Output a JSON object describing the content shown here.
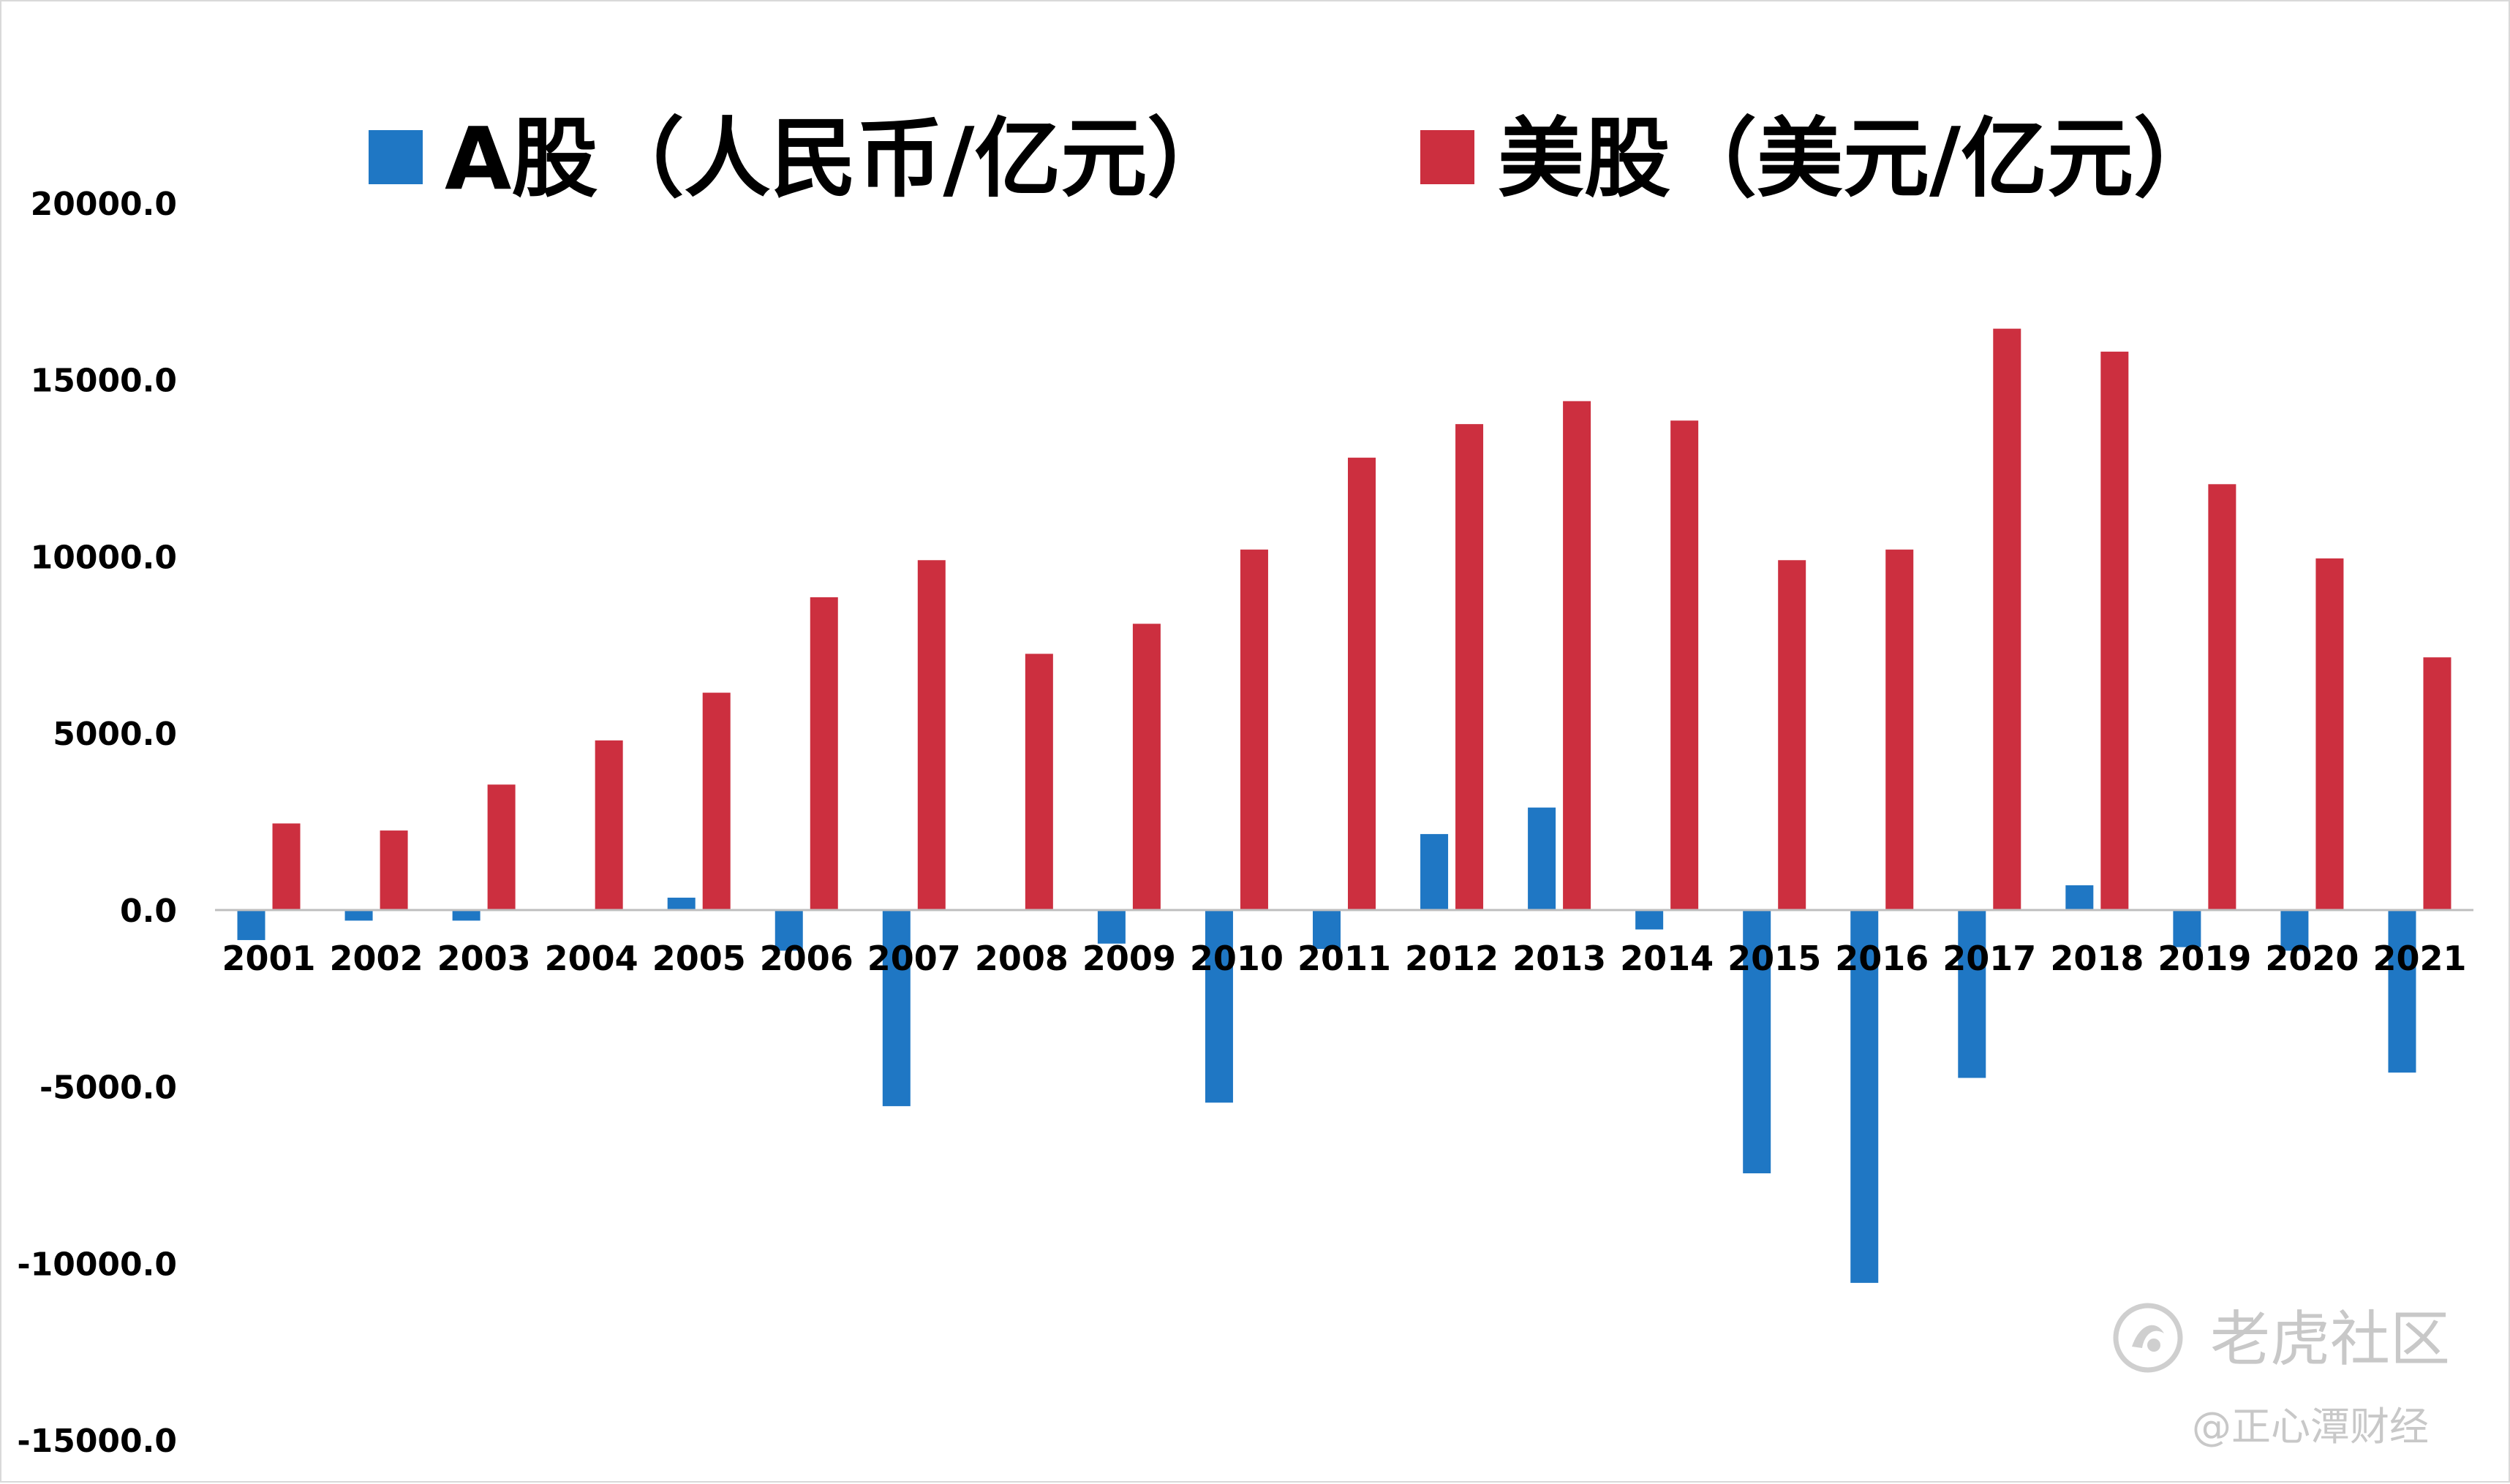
{
  "chart_data": {
    "type": "bar",
    "categories": [
      "2001",
      "2002",
      "2003",
      "2004",
      "2005",
      "2006",
      "2007",
      "2008",
      "2009",
      "2010",
      "2011",
      "2012",
      "2013",
      "2014",
      "2015",
      "2016",
      "2017",
      "2018",
      "2019",
      "2020",
      "2021"
    ],
    "series": [
      {
        "name": "A股（人民币/亿元）",
        "color": "#1f77c4",
        "values": [
          -850,
          -300,
          -300,
          0,
          350,
          -1150,
          -5550,
          0,
          -950,
          -5450,
          -1100,
          2150,
          2900,
          -550,
          -7450,
          -10550,
          -4750,
          700,
          -1050,
          -1150,
          -4600
        ]
      },
      {
        "name": "美股（美元/亿元）",
        "color": "#cc2f3f",
        "values": [
          2450,
          2250,
          3550,
          4800,
          6150,
          8850,
          9900,
          7250,
          8100,
          10200,
          12800,
          13750,
          14400,
          13850,
          9900,
          10200,
          16450,
          15800,
          12050,
          9950,
          7150
        ]
      }
    ],
    "yticks": [
      "20000.0",
      "15000.0",
      "10000.0",
      "5000.0",
      "0.0",
      "-5000.0",
      "-10000.0",
      "-15000.0"
    ],
    "ylim": [
      -15000,
      20000
    ],
    "legend_position": "top",
    "grid": false,
    "title": "",
    "xlabel": "",
    "ylabel": ""
  },
  "watermark": {
    "logo_text": "老虎社区",
    "handle": "@正心潭财经"
  }
}
